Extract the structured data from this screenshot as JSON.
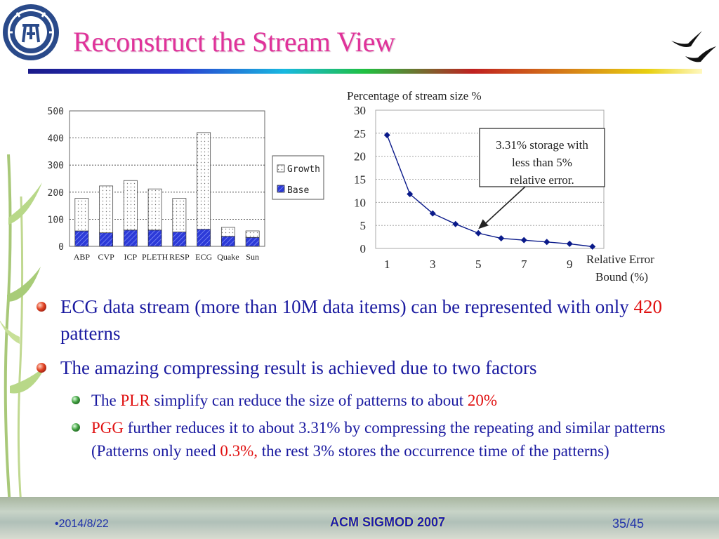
{
  "slide": {
    "title": "Reconstruct the Stream View"
  },
  "bullets": {
    "b1": {
      "pre": "ECG data stream (more than 10M data items) can be represented with only ",
      "highlight": "420",
      "post": " patterns"
    },
    "b2": {
      "text": "The amazing compressing result is achieved due to two factors"
    },
    "b3": {
      "pre": "The ",
      "highlight1": "PLR",
      "mid": " simplify can reduce the size of patterns to about ",
      "highlight2": "20%"
    },
    "b4": {
      "highlight1": "PGG",
      "mid": " further reduces it to about 3.31% by compressing the repeating and similar patterns (Patterns only need ",
      "highlight2": "0.3%,",
      "post": " the rest 3% stores the occurrence time of the patterns)"
    }
  },
  "footer": {
    "date": "2014/8/22",
    "conference": "ACM SIGMOD 2007",
    "page": "35/45"
  },
  "chart_data": [
    {
      "type": "bar",
      "stacked": true,
      "categories": [
        "ABP",
        "CVP",
        "ICP",
        "PLETH",
        "RESP",
        "ECG",
        "Quake",
        "Sun"
      ],
      "series": [
        {
          "name": "Base",
          "values": [
            57,
            50,
            60,
            60,
            53,
            63,
            37,
            33
          ],
          "color": "#2c3ad8"
        },
        {
          "name": "Growth",
          "values": [
            120,
            173,
            183,
            152,
            124,
            357,
            33,
            24
          ],
          "color": "#ffffff"
        }
      ],
      "ylim": [
        0,
        500
      ],
      "yticks": [
        "0",
        "100",
        "200",
        "300",
        "400",
        "500"
      ],
      "grid": true,
      "legend": "right"
    },
    {
      "type": "line",
      "ylabel": "Percentage of stream size %",
      "xlabel": "Relative Error Bound (%)",
      "x": [
        1,
        2,
        3,
        4,
        5,
        6,
        7,
        8,
        9,
        10
      ],
      "y": [
        24.6,
        11.8,
        7.6,
        5.3,
        3.31,
        2.2,
        1.8,
        1.4,
        1.0,
        0.4
      ],
      "xticks": [
        "1",
        "3",
        "5",
        "7",
        "9"
      ],
      "yticks": [
        "0",
        "5",
        "10",
        "15",
        "20",
        "25",
        "30"
      ],
      "ylim": [
        0,
        30
      ],
      "xlim": [
        0.5,
        10.5
      ],
      "annotation": {
        "text_lines": [
          "3.31% storage with",
          "less than 5%",
          "relative error."
        ],
        "x": 5,
        "y": 3.31
      },
      "color": "#0a1a8a",
      "grid": true
    }
  ]
}
